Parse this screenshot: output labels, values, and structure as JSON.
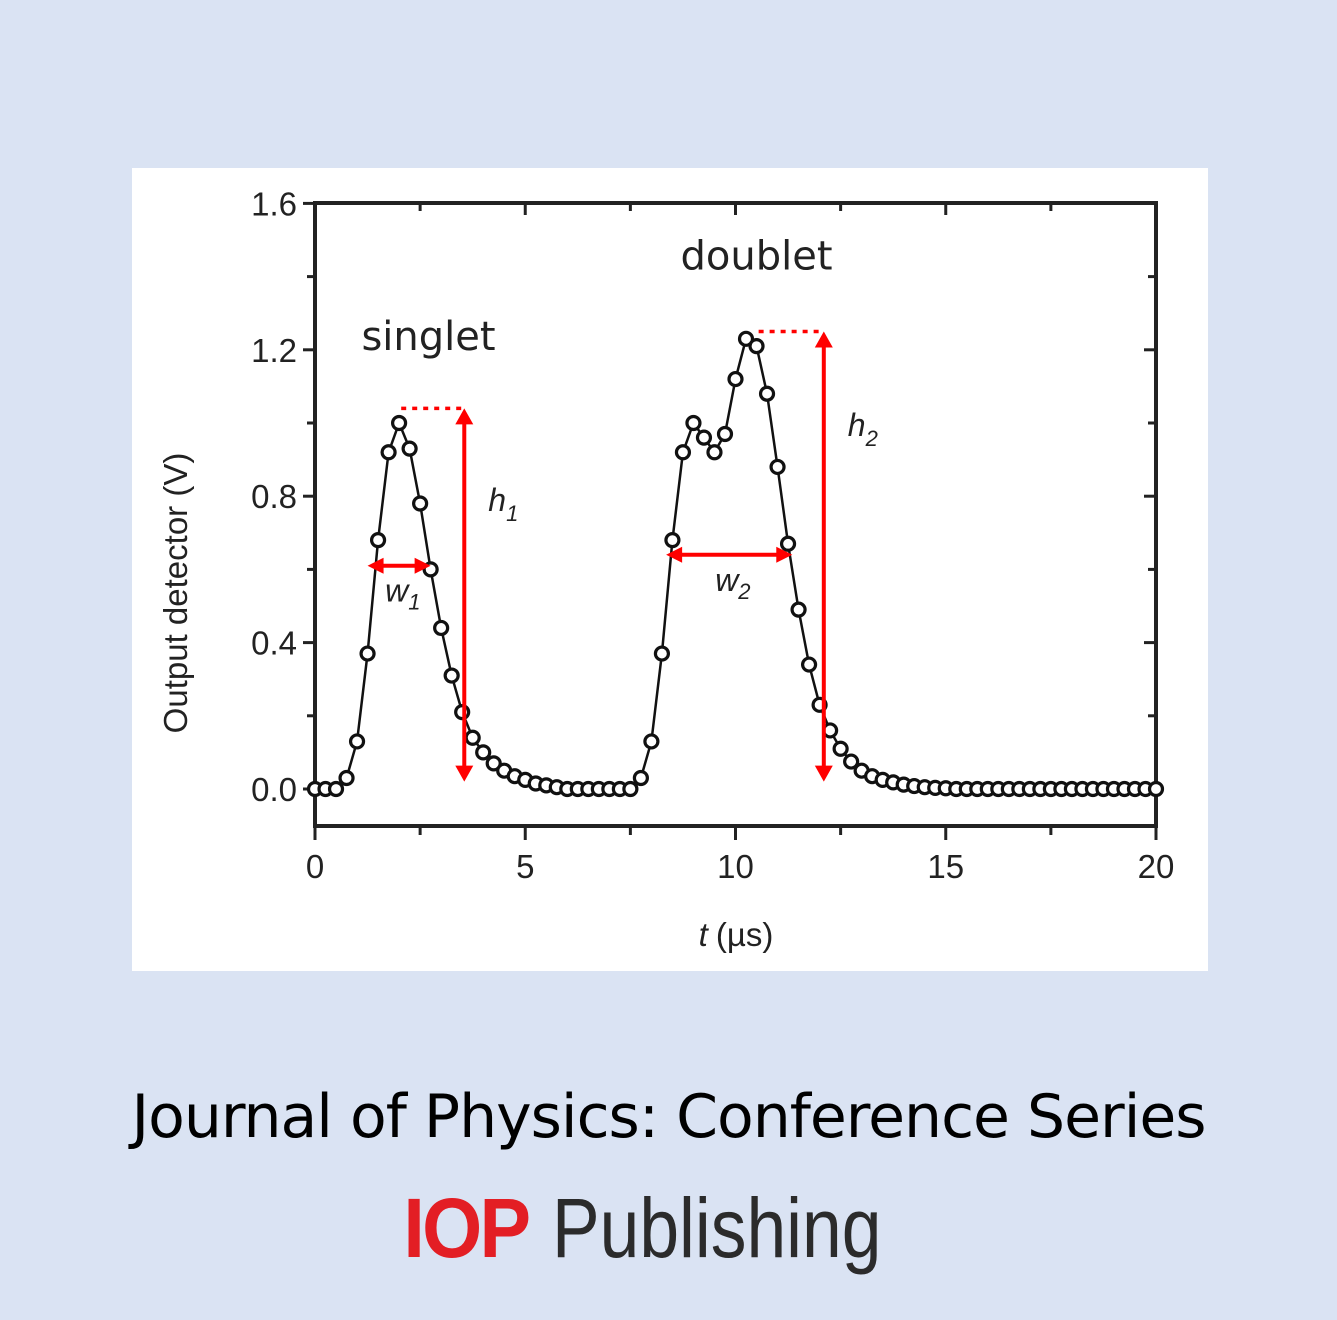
{
  "footer": {
    "journal_title": "Journal of Physics: Conference Series",
    "publisher_brand": "IOP",
    "publisher_name": "Publishing",
    "brand_color": "#e31e24"
  },
  "background_color": "#dae3f3",
  "chart_data": {
    "type": "scatter",
    "title": "",
    "xlabel": "t (µs)",
    "xlabel_italic_part": "t",
    "xlabel_unit": "(µs)",
    "ylabel": "Output detector (V)",
    "xlim": [
      0,
      20
    ],
    "ylim": [
      -0.1,
      1.6
    ],
    "xticks": [
      0,
      5,
      10,
      15,
      20
    ],
    "xtick_labels": [
      "0",
      "5",
      "10",
      "15",
      "20"
    ],
    "yticks": [
      0.0,
      0.4,
      0.8,
      1.2,
      1.6
    ],
    "ytick_labels": [
      "0.0",
      "0.4",
      "0.8",
      "1.2",
      "1.6"
    ],
    "grid": false,
    "legend": null,
    "marker": "open-circle",
    "line": "solid-black",
    "series": [
      {
        "name": "Output detector signal",
        "x": [
          0.0,
          0.25,
          0.5,
          0.75,
          1.0,
          1.25,
          1.5,
          1.75,
          2.0,
          2.25,
          2.5,
          2.75,
          3.0,
          3.25,
          3.5,
          3.75,
          4.0,
          4.25,
          4.5,
          4.75,
          5.0,
          5.25,
          5.5,
          5.75,
          6.0,
          6.25,
          6.5,
          6.75,
          7.0,
          7.25,
          7.5,
          7.75,
          8.0,
          8.25,
          8.5,
          8.75,
          9.0,
          9.25,
          9.5,
          9.75,
          10.0,
          10.25,
          10.5,
          10.75,
          11.0,
          11.25,
          11.5,
          11.75,
          12.0,
          12.25,
          12.5,
          12.75,
          13.0,
          13.25,
          13.5,
          13.75,
          14.0,
          14.25,
          14.5,
          14.75,
          15.0,
          15.25,
          15.5,
          15.75,
          16.0,
          16.25,
          16.5,
          16.75,
          17.0,
          17.25,
          17.5,
          17.75,
          18.0,
          18.25,
          18.5,
          18.75,
          19.0,
          19.25,
          19.5,
          19.75,
          20.0
        ],
        "y": [
          0.0,
          0.0,
          0.0,
          0.03,
          0.13,
          0.37,
          0.68,
          0.92,
          1.0,
          0.93,
          0.78,
          0.6,
          0.44,
          0.31,
          0.21,
          0.14,
          0.1,
          0.07,
          0.05,
          0.035,
          0.025,
          0.015,
          0.01,
          0.005,
          0.0,
          0.0,
          0.0,
          0.0,
          0.0,
          0.0,
          0.0,
          0.03,
          0.13,
          0.37,
          0.68,
          0.92,
          1.0,
          0.96,
          0.92,
          0.97,
          1.12,
          1.23,
          1.21,
          1.08,
          0.88,
          0.67,
          0.49,
          0.34,
          0.23,
          0.16,
          0.11,
          0.075,
          0.05,
          0.035,
          0.025,
          0.018,
          0.012,
          0.008,
          0.005,
          0.003,
          0.002,
          0.0,
          0.0,
          0.0,
          0.0,
          0.0,
          0.0,
          0.0,
          0.0,
          0.0,
          0.0,
          0.0,
          0.0,
          0.0,
          0.0,
          0.0,
          0.0,
          0.0,
          0.0,
          0.0,
          0.0
        ]
      }
    ],
    "annotations": [
      {
        "text": "singlet",
        "x": 2.7,
        "y": 1.2
      },
      {
        "text": "doublet",
        "x": 10.5,
        "y": 1.42
      },
      {
        "text": "h1",
        "label": "h",
        "sub": "1",
        "type": "vertical-double-arrow",
        "x": 3.55,
        "y_from": 0.02,
        "y_to": 1.04,
        "color": "#ff0000"
      },
      {
        "text": "w1",
        "label": "w",
        "sub": "1",
        "type": "horizontal-double-arrow",
        "y": 0.61,
        "x_from": 1.25,
        "x_to": 2.75,
        "color": "#ff0000"
      },
      {
        "text": "h2",
        "label": "h",
        "sub": "2",
        "type": "vertical-double-arrow",
        "x": 12.1,
        "y_from": 0.02,
        "y_to": 1.25,
        "color": "#ff0000"
      },
      {
        "text": "w2",
        "label": "w",
        "sub": "2",
        "type": "horizontal-double-arrow",
        "y": 0.64,
        "x_from": 8.35,
        "x_to": 11.35,
        "color": "#ff0000"
      },
      {
        "type": "dotted-line",
        "x_from": 2.05,
        "x_to": 3.55,
        "y": 1.04,
        "color": "#ff0000"
      },
      {
        "type": "dotted-line",
        "x_from": 10.55,
        "x_to": 12.1,
        "y": 1.25,
        "color": "#ff0000"
      }
    ]
  }
}
